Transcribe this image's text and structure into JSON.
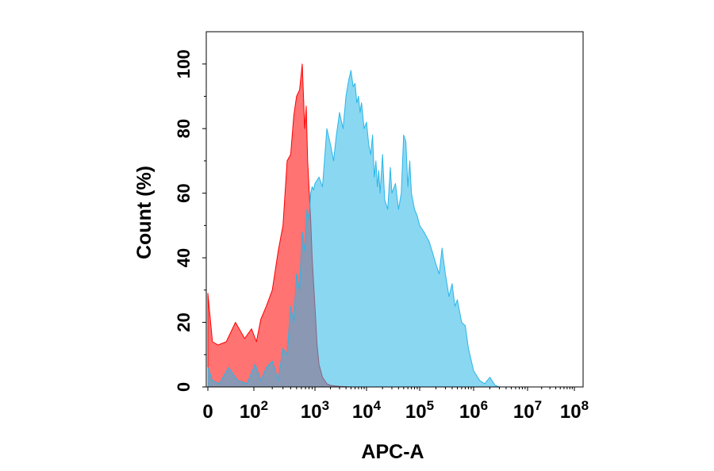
{
  "chart_data": {
    "type": "area",
    "title": "",
    "xlabel": "APC-A",
    "ylabel": "Count (%)",
    "x_scale": "biexponential",
    "xlim": [
      0,
      100000000
    ],
    "ylim": [
      0,
      110
    ],
    "x_ticks": [
      {
        "base": "0",
        "exp": "",
        "value": 0
      },
      {
        "base": "10",
        "exp": "2",
        "value": 100
      },
      {
        "base": "10",
        "exp": "3",
        "value": 1000
      },
      {
        "base": "10",
        "exp": "4",
        "value": 10000
      },
      {
        "base": "10",
        "exp": "5",
        "value": 100000
      },
      {
        "base": "10",
        "exp": "6",
        "value": 1000000
      },
      {
        "base": "10",
        "exp": "7",
        "value": 10000000
      },
      {
        "base": "10",
        "exp": "8",
        "value": 100000000
      }
    ],
    "y_ticks": [
      "0",
      "20",
      "40",
      "60",
      "80",
      "100"
    ],
    "series": [
      {
        "color": "#ff0000",
        "fill_opacity": 0.55,
        "x": [
          0,
          10,
          22,
          40,
          60,
          80,
          95,
          110,
          130,
          160,
          200,
          250,
          300,
          350,
          400,
          450,
          500,
          560,
          620,
          680,
          720,
          760,
          800,
          850,
          900,
          950,
          1000,
          1100,
          1200,
          1400,
          1700,
          2000,
          2500,
          3000,
          5000
        ],
        "values": [
          29,
          14,
          13,
          14,
          20,
          15,
          18,
          14,
          21,
          25,
          30,
          42,
          50,
          70,
          72,
          84,
          90,
          92,
          100,
          80,
          87,
          70,
          62,
          52,
          40,
          32,
          25,
          13,
          7,
          3,
          1,
          0.5,
          0.3,
          0.2,
          0
        ]
      },
      {
        "color": "#29b6e8",
        "fill_opacity": 0.55,
        "x": [
          0,
          10,
          25,
          45,
          65,
          85,
          105,
          130,
          160,
          200,
          250,
          300,
          350,
          400,
          450,
          500,
          560,
          620,
          680,
          740,
          800,
          850,
          900,
          950,
          1000,
          1100,
          1200,
          1400,
          1700,
          2000,
          2300,
          2600,
          3000,
          3500,
          4000,
          4500,
          5000,
          5500,
          6000,
          6500,
          7000,
          7500,
          8000,
          9000,
          10000,
          11000,
          12000,
          13000,
          14000,
          15000,
          16000,
          17000,
          18000,
          20000,
          22000,
          25000,
          28000,
          30000,
          35000,
          40000,
          45000,
          50000,
          55000,
          60000,
          65000,
          70000,
          80000,
          90000,
          100000,
          120000,
          150000,
          170000,
          200000,
          230000,
          260000,
          300000,
          350000,
          400000,
          450000,
          500000,
          600000,
          700000,
          800000,
          1000000,
          1300000,
          1600000,
          2000000,
          2500000,
          3000000
        ],
        "values": [
          6,
          2,
          1,
          6,
          2,
          1,
          7,
          2,
          6,
          8,
          2,
          12,
          10,
          25,
          20,
          35,
          30,
          48,
          42,
          55,
          52,
          60,
          62,
          61,
          63,
          64,
          65,
          62,
          80,
          75,
          70,
          78,
          85,
          80,
          90,
          95,
          98,
          93,
          94,
          88,
          90,
          85,
          88,
          80,
          82,
          75,
          72,
          78,
          65,
          70,
          62,
          67,
          60,
          72,
          58,
          55,
          68,
          60,
          63,
          55,
          60,
          78,
          76,
          62,
          70,
          60,
          55,
          53,
          50,
          48,
          45,
          42,
          38,
          35,
          43,
          35,
          28,
          32,
          25,
          27,
          20,
          19,
          12,
          5,
          2,
          1,
          3,
          0.5,
          0
        ]
      }
    ]
  }
}
